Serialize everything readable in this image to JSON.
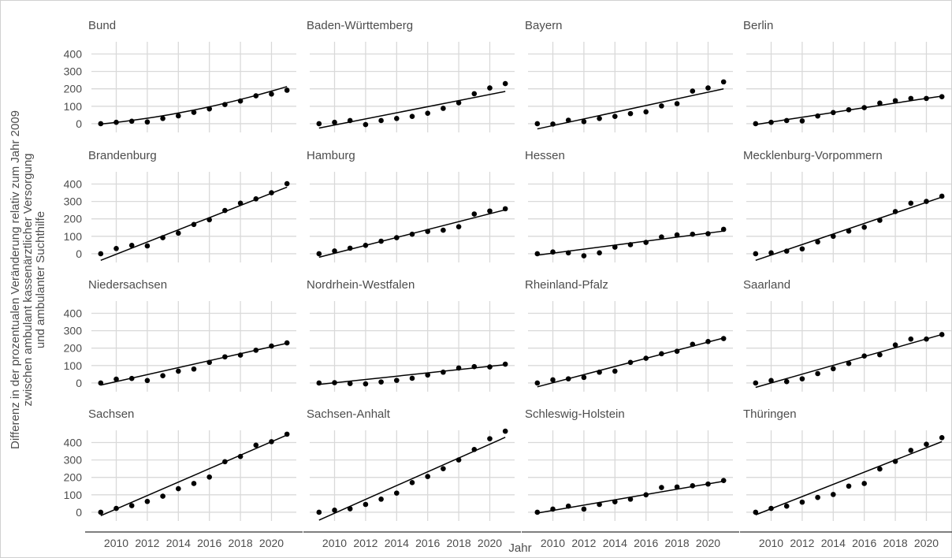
{
  "chart_data": {
    "type": "scatter",
    "xlabel": "Jahr",
    "ylabel_lines": [
      "Differenz in der prozentualen Veränderung relativ zum Jahr 2009",
      "zwischen ambulant kassenärztlicher Versorgung",
      "und ambulanter Suchthilfe"
    ],
    "x": [
      2009,
      2010,
      2011,
      2012,
      2013,
      2014,
      2015,
      2016,
      2017,
      2018,
      2019,
      2020,
      2021
    ],
    "x_ticks": [
      2010,
      2012,
      2014,
      2016,
      2018,
      2020
    ],
    "x_tick_labels": [
      "2010",
      "2012",
      "2014",
      "2016",
      "2018",
      "2020"
    ],
    "xlim": [
      2008.4,
      2021.6
    ],
    "y_ticks": [
      0,
      100,
      200,
      300,
      400
    ],
    "y_tick_labels": [
      "0",
      "100",
      "200",
      "300",
      "400"
    ],
    "ylim": [
      -50,
      470
    ],
    "grid": true,
    "point_color": "#000000",
    "line_color": "#000000",
    "grid_color": "#d9d9d9",
    "facets": [
      {
        "name": "Bund",
        "values": [
          0,
          8,
          14,
          10,
          30,
          45,
          65,
          85,
          110,
          130,
          160,
          170,
          192
        ],
        "fit": "curve",
        "fit_start": -2,
        "fit_end": 213
      },
      {
        "name": "Baden-Württemberg",
        "values": [
          0,
          8,
          18,
          -5,
          18,
          30,
          42,
          60,
          88,
          120,
          172,
          205,
          230
        ],
        "fit": "linear",
        "fit_start": -25,
        "fit_end": 185
      },
      {
        "name": "Bayern",
        "values": [
          0,
          -2,
          20,
          12,
          30,
          42,
          58,
          68,
          102,
          115,
          187,
          205,
          240
        ],
        "fit": "linear",
        "fit_start": -30,
        "fit_end": 200
      },
      {
        "name": "Berlin",
        "values": [
          0,
          8,
          18,
          16,
          44,
          64,
          80,
          92,
          118,
          132,
          145,
          145,
          155
        ],
        "fit": "curve",
        "fit_start": -5,
        "fit_end": 158
      },
      {
        "name": "Brandenburg",
        "values": [
          0,
          30,
          48,
          45,
          92,
          118,
          168,
          195,
          248,
          290,
          315,
          350,
          402
        ],
        "fit": "linear",
        "fit_start": -38,
        "fit_end": 382
      },
      {
        "name": "Hamburg",
        "values": [
          0,
          16,
          32,
          48,
          72,
          92,
          112,
          128,
          135,
          155,
          228,
          245,
          258
        ],
        "fit": "linear",
        "fit_start": -20,
        "fit_end": 252
      },
      {
        "name": "Hessen",
        "values": [
          0,
          10,
          5,
          -12,
          5,
          38,
          52,
          65,
          96,
          108,
          112,
          115,
          140
        ],
        "fit": "linear",
        "fit_start": -8,
        "fit_end": 130
      },
      {
        "name": "Mecklenburg-Vorpommern",
        "values": [
          0,
          5,
          15,
          28,
          68,
          100,
          130,
          152,
          192,
          242,
          290,
          300,
          330
        ],
        "fit": "linear",
        "fit_start": -38,
        "fit_end": 325
      },
      {
        "name": "Niedersachsen",
        "values": [
          0,
          22,
          26,
          14,
          42,
          68,
          80,
          118,
          150,
          160,
          188,
          212,
          230
        ],
        "fit": "linear",
        "fit_start": -12,
        "fit_end": 228
      },
      {
        "name": "Nordrhein-Westfalen",
        "values": [
          0,
          2,
          -3,
          -5,
          6,
          15,
          27,
          46,
          62,
          86,
          94,
          92,
          108
        ],
        "fit": "linear",
        "fit_start": -8,
        "fit_end": 105
      },
      {
        "name": "Rheinland-Pfalz",
        "values": [
          0,
          18,
          24,
          32,
          62,
          68,
          118,
          142,
          168,
          182,
          222,
          238,
          255
        ],
        "fit": "linear",
        "fit_start": -22,
        "fit_end": 258
      },
      {
        "name": "Saarland",
        "values": [
          0,
          14,
          8,
          24,
          54,
          82,
          112,
          155,
          162,
          218,
          252,
          252,
          278
        ],
        "fit": "linear",
        "fit_start": -25,
        "fit_end": 278
      },
      {
        "name": "Sachsen",
        "values": [
          0,
          22,
          38,
          62,
          92,
          135,
          165,
          202,
          290,
          320,
          385,
          405,
          448
        ],
        "fit": "linear",
        "fit_start": -20,
        "fit_end": 443
      },
      {
        "name": "Sachsen-Anhalt",
        "values": [
          0,
          12,
          20,
          45,
          75,
          110,
          170,
          205,
          250,
          300,
          360,
          422,
          465
        ],
        "fit": "linear",
        "fit_start": -45,
        "fit_end": 430
      },
      {
        "name": "Schleswig-Holstein",
        "values": [
          0,
          18,
          35,
          18,
          45,
          60,
          75,
          100,
          142,
          145,
          152,
          162,
          182
        ],
        "fit": "linear",
        "fit_start": -5,
        "fit_end": 178
      },
      {
        "name": "Thüringen",
        "values": [
          0,
          22,
          35,
          58,
          85,
          102,
          150,
          165,
          248,
          292,
          355,
          390,
          428
        ],
        "fit": "linear",
        "fit_start": -15,
        "fit_end": 405
      }
    ]
  }
}
